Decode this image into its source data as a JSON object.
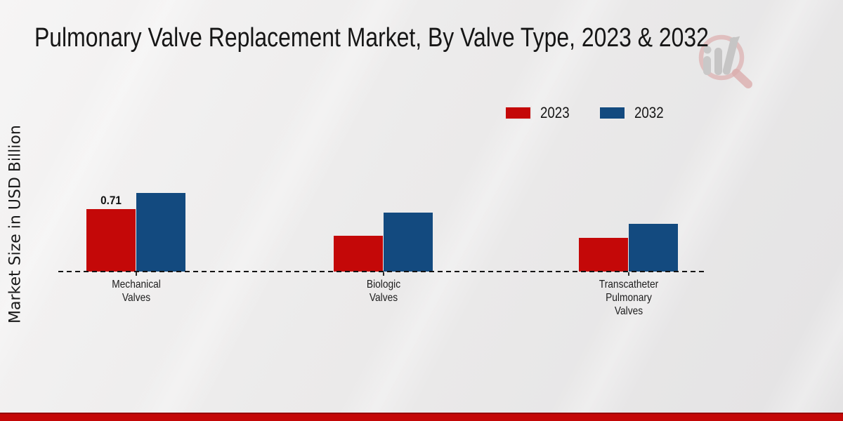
{
  "chart_data": {
    "type": "bar",
    "title": "Pulmonary Valve Replacement Market, By Valve Type, 2023 & 2032",
    "ylabel": "Market Size in USD Billion",
    "xlabel": "",
    "categories": [
      "Mechanical Valves",
      "Biologic Valves",
      "Transcatheter Pulmonary Valves"
    ],
    "series": [
      {
        "name": "2023",
        "color": "#c40808",
        "values": [
          0.71,
          0.41,
          0.38
        ]
      },
      {
        "name": "2032",
        "color": "#134a7f",
        "values": [
          0.89,
          0.67,
          0.54
        ]
      }
    ],
    "data_labels": [
      {
        "series_index": 0,
        "category_index": 0,
        "text": "0.71"
      }
    ],
    "legend_position": "top-right",
    "baseline_style": "dashed",
    "grid": false
  },
  "footer": {
    "bar_color": "#c40707"
  },
  "watermark": {
    "icon": "magnifier-bar-chart-logo"
  }
}
